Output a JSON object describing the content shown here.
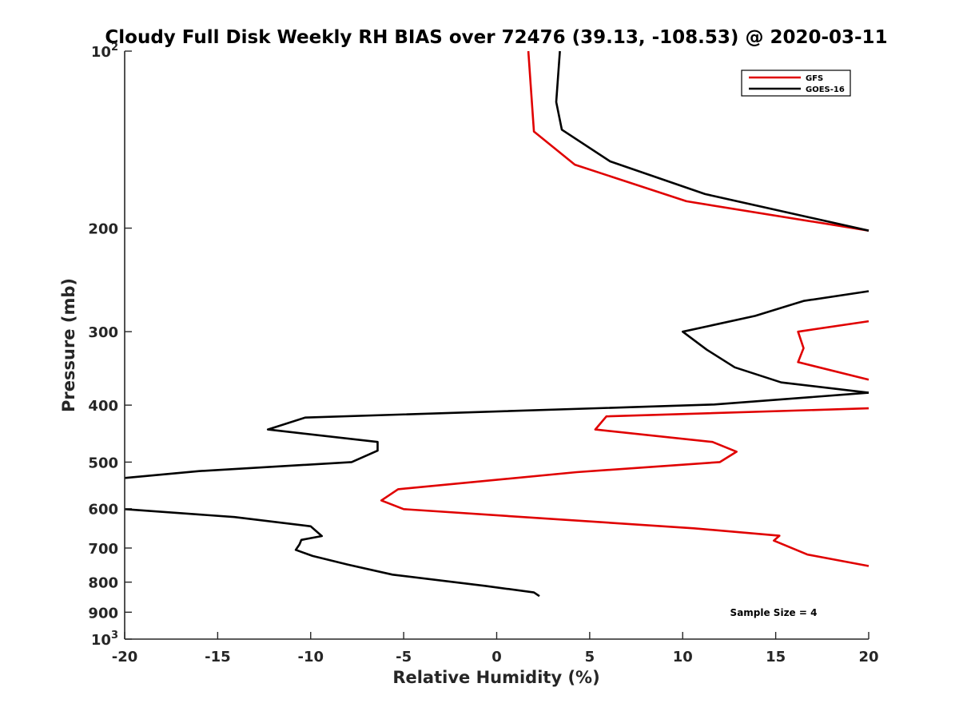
{
  "chart_data": {
    "type": "line",
    "title": "Cloudy Full Disk Weekly RH BIAS over 72476 (39.13, -108.53) @ 2020-03-11",
    "xlabel": "Relative Humidity (%)",
    "ylabel": "Pressure (mb)",
    "xlim": [
      -20,
      20
    ],
    "ylim": [
      100,
      1000
    ],
    "y_scale": "log",
    "y_reversed": true,
    "grid": false,
    "legend_position": "top-right",
    "x_ticks": [
      "-20",
      "-15",
      "-10",
      "-5",
      "0",
      "5",
      "10",
      "15",
      "20"
    ],
    "y_ticks": [
      {
        "value": 100,
        "base": "10",
        "exp": "2"
      },
      {
        "value": 200,
        "label": "200"
      },
      {
        "value": 300,
        "label": "300"
      },
      {
        "value": 400,
        "label": "400"
      },
      {
        "value": 500,
        "label": "500"
      },
      {
        "value": 600,
        "label": "600"
      },
      {
        "value": 700,
        "label": "700"
      },
      {
        "value": 800,
        "label": "800"
      },
      {
        "value": 900,
        "label": "900"
      },
      {
        "value": 1000,
        "base": "10",
        "exp": "3"
      }
    ],
    "annotation": "Sample Size = 4",
    "series": [
      {
        "name": "GFS",
        "color": "#e00000",
        "segments": [
          [
            [
              1.7,
              100
            ],
            [
              1.9,
              123
            ],
            [
              2.0,
              137
            ],
            [
              4.2,
              156
            ],
            [
              10.2,
              180
            ],
            [
              20,
              202
            ]
          ],
          [
            [
              20,
              288
            ],
            [
              16.2,
              300
            ],
            [
              16.5,
              320
            ],
            [
              16.2,
              338
            ],
            [
              20,
              362
            ]
          ],
          [
            [
              20,
              405
            ],
            [
              5.9,
              418
            ],
            [
              5.3,
              440
            ],
            [
              11.6,
              462
            ],
            [
              12.9,
              480
            ],
            [
              12.0,
              500
            ],
            [
              4.3,
              520
            ],
            [
              -5.3,
              556
            ],
            [
              -6.2,
              581
            ],
            [
              -5.0,
              601
            ],
            [
              10.6,
              648
            ],
            [
              15.2,
              667
            ],
            [
              14.9,
              680
            ],
            [
              16.7,
              718
            ],
            [
              20,
              751
            ]
          ]
        ]
      },
      {
        "name": "GOES-16",
        "color": "#000000",
        "segments": [
          [
            [
              3.4,
              100
            ],
            [
              3.2,
              122
            ],
            [
              3.5,
              136
            ],
            [
              6.1,
              154
            ],
            [
              11.2,
              175
            ],
            [
              20,
              202
            ]
          ],
          [
            [
              20,
              256
            ],
            [
              16.5,
              266
            ],
            [
              13.9,
              282
            ],
            [
              10.0,
              300
            ],
            [
              11.3,
              322
            ],
            [
              12.8,
              345
            ],
            [
              15.3,
              366
            ],
            [
              20,
              381
            ]
          ],
          [
            [
              20,
              381
            ],
            [
              11.7,
              399
            ],
            [
              -10.3,
              420
            ],
            [
              -12.3,
              440
            ],
            [
              -6.4,
              462
            ],
            [
              -6.4,
              478
            ],
            [
              -7.8,
              500
            ],
            [
              -16.0,
              518
            ],
            [
              -20,
              532
            ]
          ],
          [
            [
              -20,
              601
            ],
            [
              -14.1,
              620
            ],
            [
              -10.0,
              643
            ],
            [
              -9.4,
              668
            ],
            [
              -10.5,
              678
            ],
            [
              -10.6,
              690
            ],
            [
              -10.8,
              705
            ],
            [
              -9.9,
              722
            ],
            [
              -8.0,
              747
            ],
            [
              -5.6,
              777
            ],
            [
              -0.6,
              812
            ],
            [
              2.0,
              833
            ],
            [
              2.3,
              845
            ]
          ]
        ]
      }
    ]
  }
}
